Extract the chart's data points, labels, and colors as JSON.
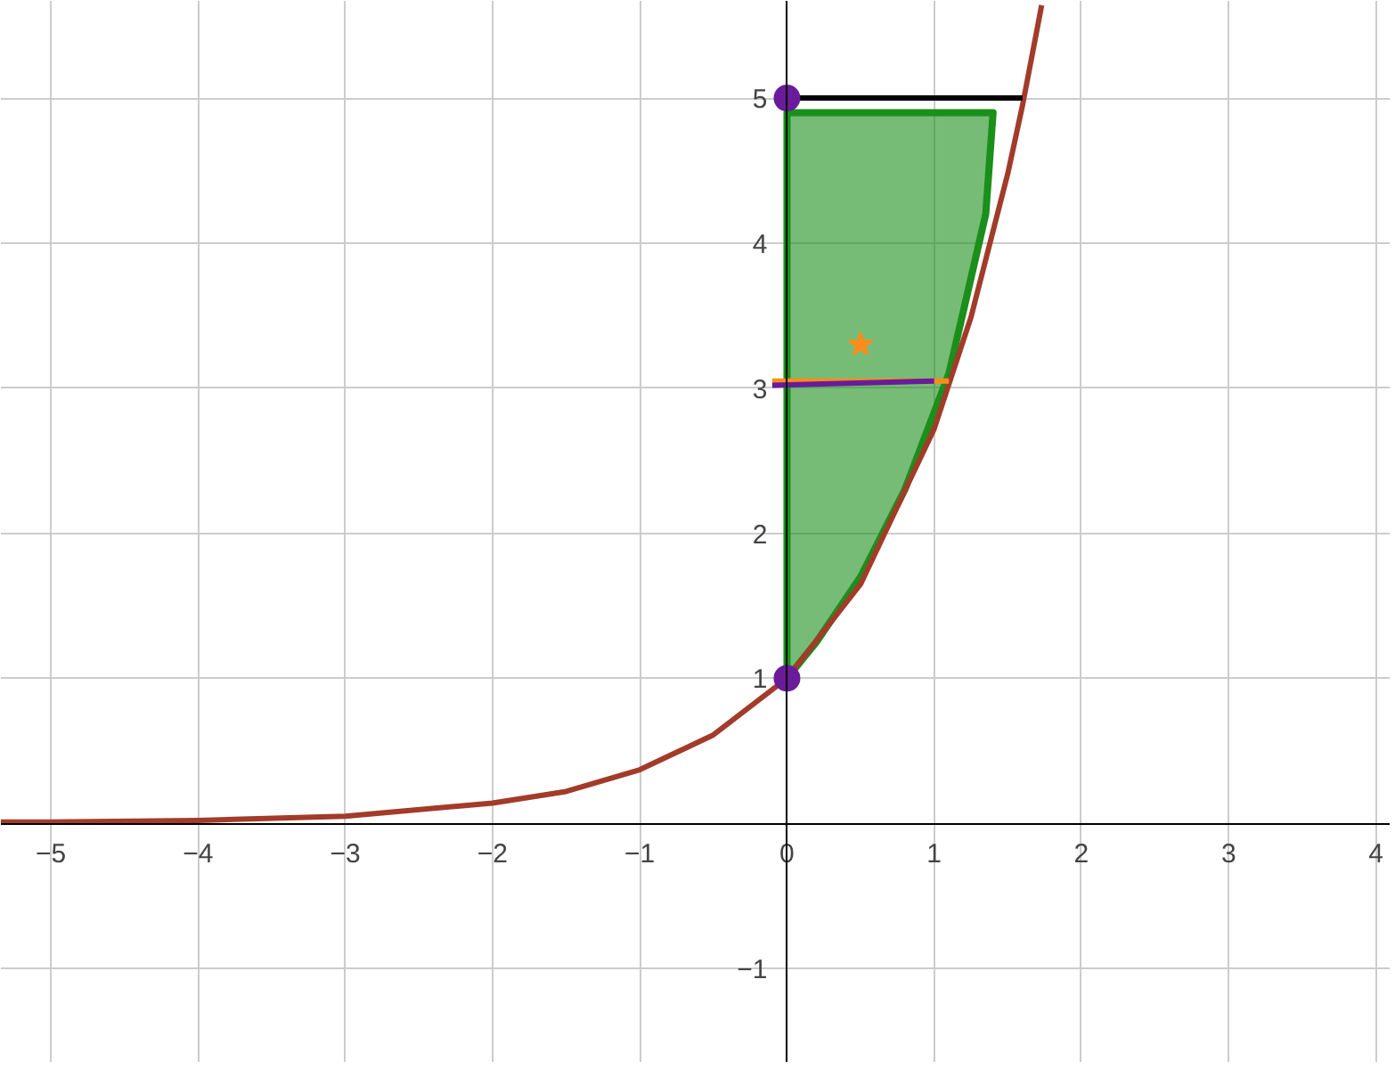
{
  "chart_data": {
    "type": "line",
    "xlim": [
      -5.34,
      4.1
    ],
    "ylim": [
      -1.65,
      5.67
    ],
    "xticks": [
      -5,
      -4,
      -3,
      -2,
      -1,
      0,
      1,
      2,
      3,
      4
    ],
    "yticks": [
      -1,
      {
        "value": 0,
        "label": null
      },
      1,
      2,
      3,
      4,
      5
    ],
    "grid": true,
    "line_style": "solid",
    "series": [
      {
        "type": "area",
        "color": "#1a8f1a",
        "x": [
          0,
          0,
          0.1,
          1.4,
          1.35,
          1.1,
          0.8,
          0.5,
          0.2,
          0
        ],
        "values": [
          1,
          4.9,
          4.9,
          4.9,
          4.2,
          3.1,
          2.3,
          1.7,
          1.25,
          1
        ]
      },
      {
        "color": "#a23b2a",
        "x": [
          -5.34,
          -5,
          -4,
          -3,
          -2,
          -1.5,
          -1,
          -0.5,
          0,
          0.5,
          1,
          1.25,
          1.5,
          1.6,
          1.73
        ],
        "values": [
          0.01,
          0.01,
          0.02,
          0.05,
          0.14,
          0.22,
          0.37,
          0.61,
          1,
          1.65,
          2.72,
          3.49,
          4.48,
          4.95,
          5.64
        ]
      },
      {
        "type": "line",
        "color": "#000000",
        "x": [
          0,
          1.6
        ],
        "values": [
          5,
          5
        ]
      },
      {
        "type": "line",
        "color": "#ff8c1a",
        "x": [
          -0.1,
          1.1
        ],
        "values": [
          3.05,
          3.05
        ]
      },
      {
        "type": "line",
        "color": "#6a1b9a",
        "x": [
          -0.1,
          1
        ],
        "values": [
          3.02,
          3.05
        ]
      },
      {
        "type": "scatter",
        "marker": "star",
        "color": "#ff8c1a",
        "x": [
          0.5
        ],
        "values": [
          3.3
        ]
      },
      {
        "type": "scatter",
        "marker": "circle",
        "color": "#6a1b9a",
        "x": [
          0,
          0
        ],
        "values": [
          1,
          5
        ]
      }
    ]
  }
}
